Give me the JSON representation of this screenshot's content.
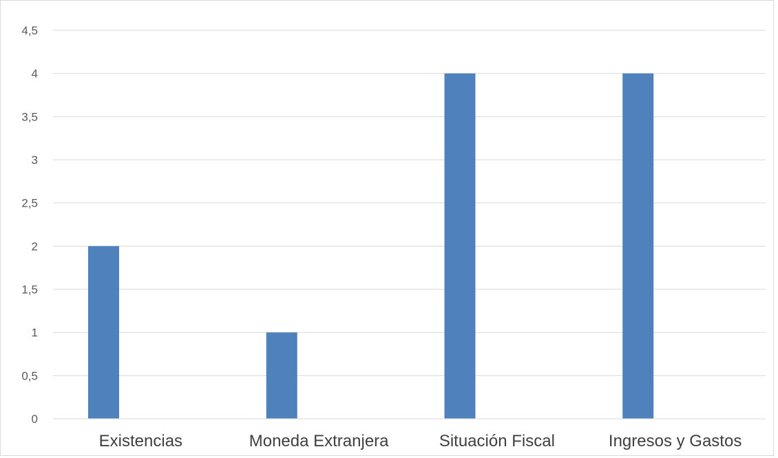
{
  "chart_data": {
    "type": "bar",
    "categories": [
      "Existencias",
      "Moneda Extranjera",
      "Situación Fiscal",
      "Ingresos y Gastos"
    ],
    "series": [
      {
        "values": [
          2,
          1,
          4,
          4
        ]
      }
    ],
    "title": "",
    "xlabel": "",
    "ylabel": "",
    "ylim": [
      0,
      4.5
    ],
    "y_ticks": [
      0,
      0.5,
      1,
      1.5,
      2,
      2.5,
      3,
      3.5,
      4,
      4.5
    ],
    "y_tick_labels": [
      "0",
      "0,5",
      "1",
      "1,5",
      "2",
      "2,5",
      "3",
      "3,5",
      "4",
      "4,5"
    ],
    "grid": true,
    "legend": "none",
    "colors": {
      "bar": "#4f81bd",
      "grid": "#d9d9d9",
      "axis": "#d9d9d9",
      "tick_text": "#595959",
      "category_text": "#404040"
    }
  }
}
